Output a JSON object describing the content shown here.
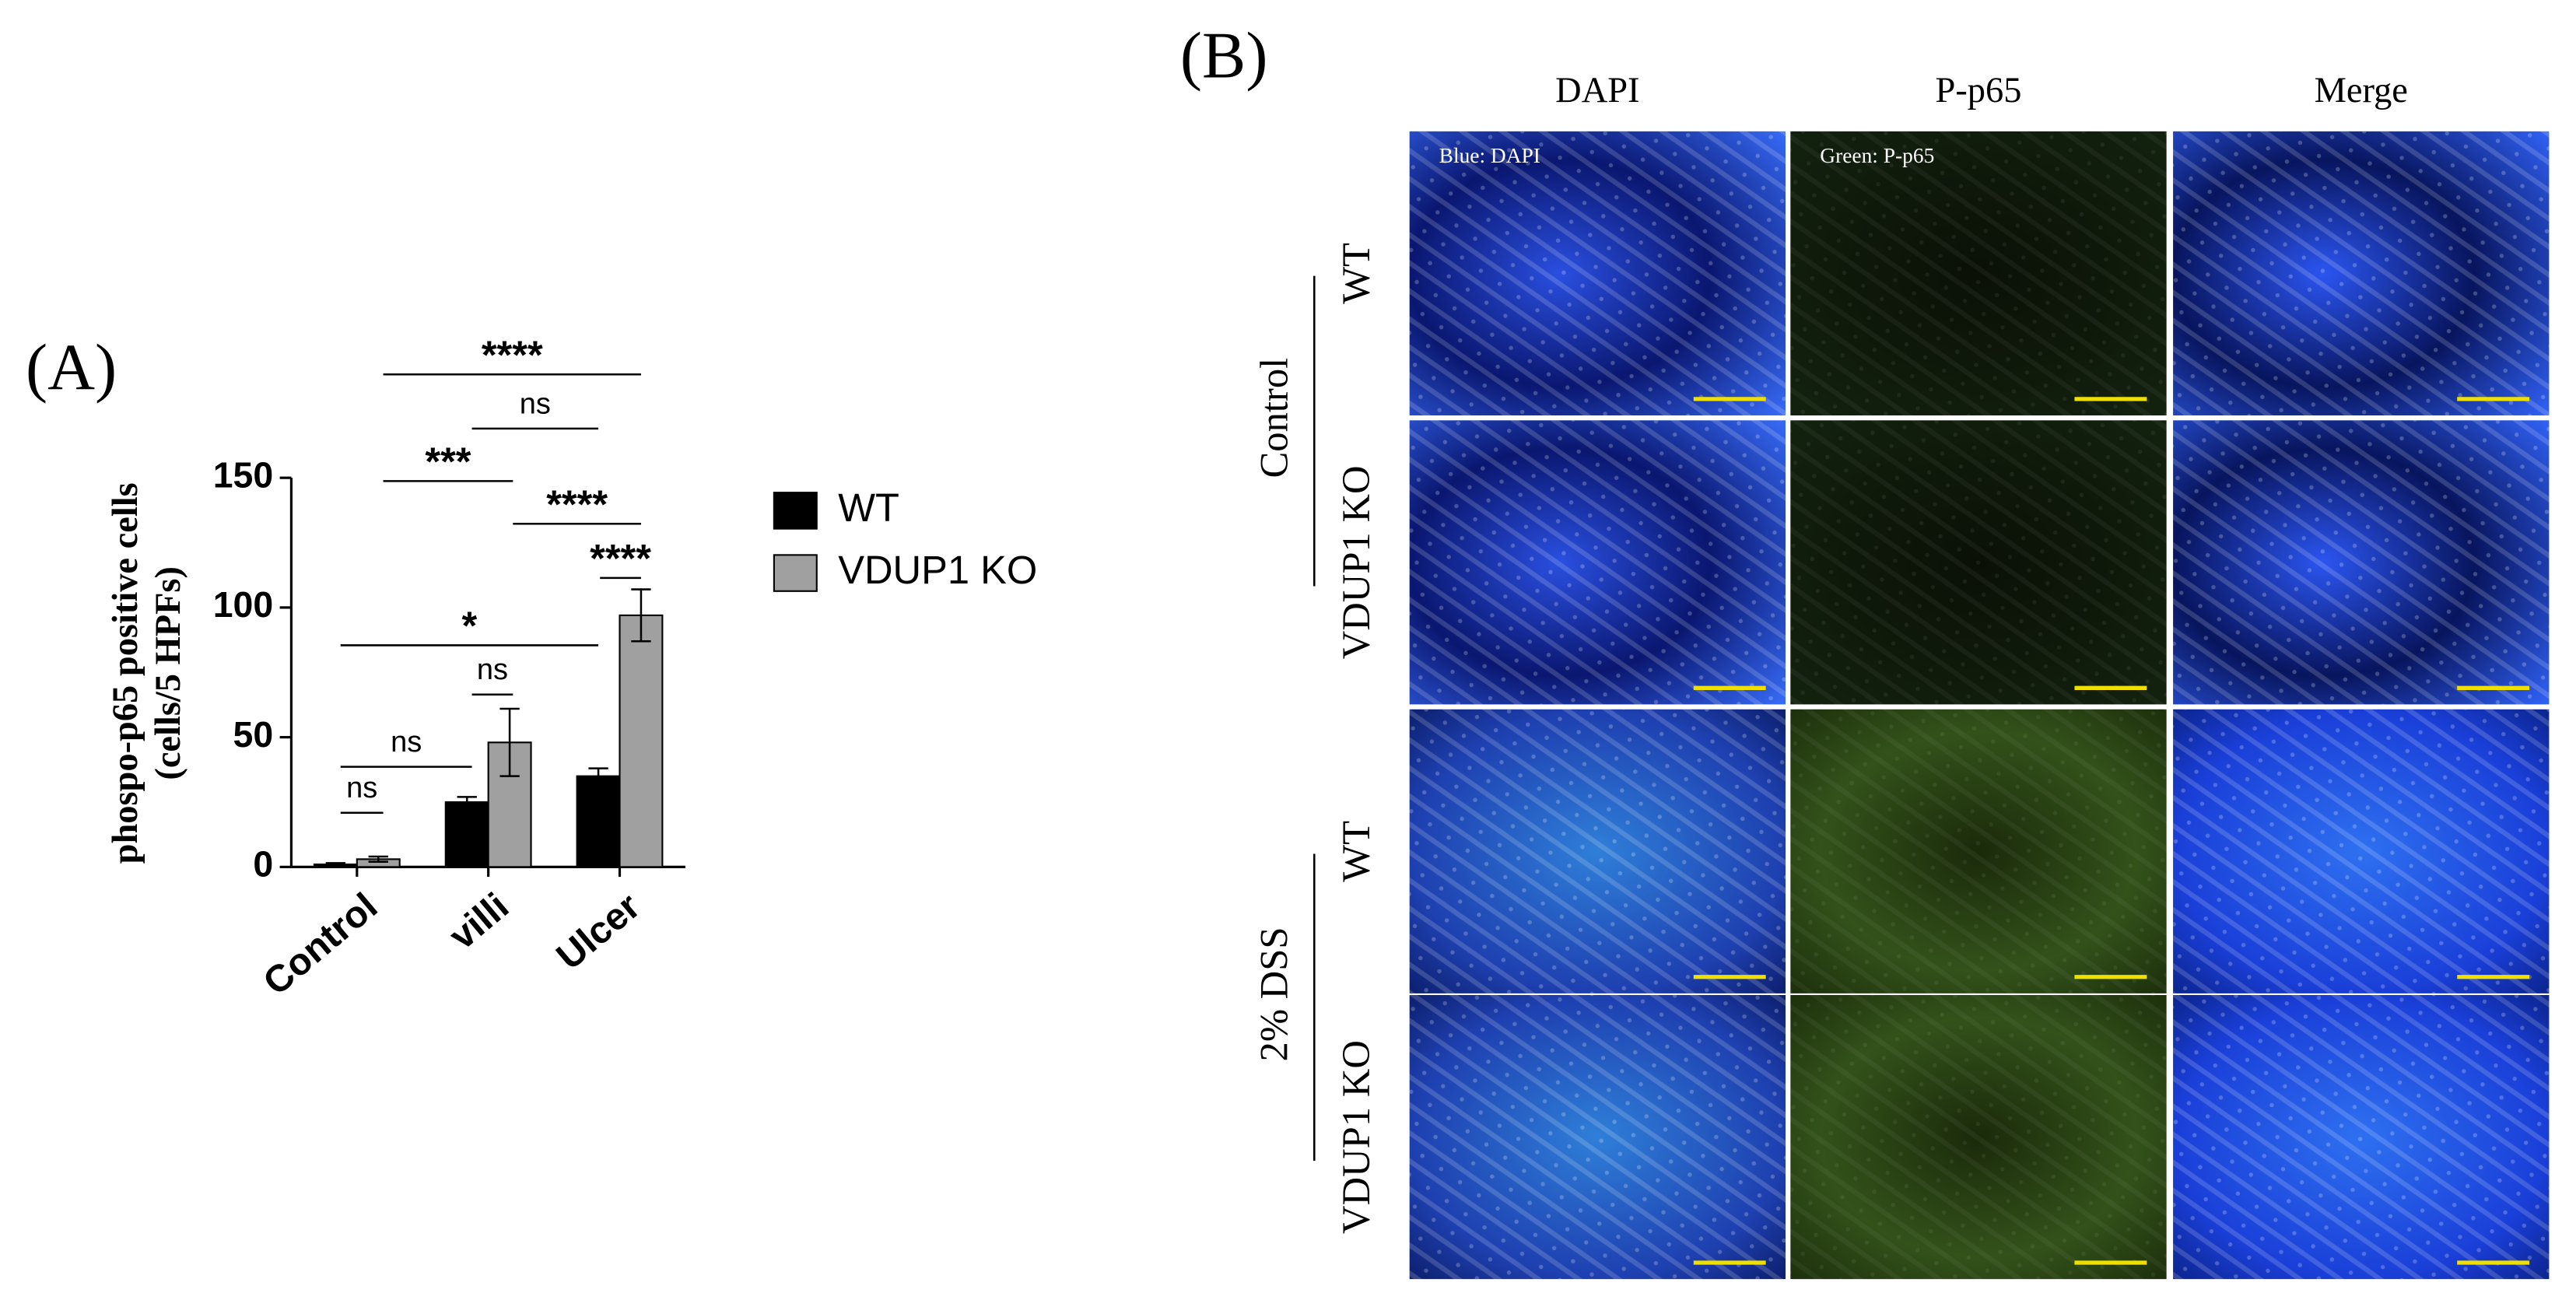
{
  "chart_data": {
    "type": "bar",
    "panel_label": "(A)",
    "ylabel": [
      "phospo-p65 positive cells",
      "(cells/5 HPFs)"
    ],
    "categories": [
      "Control",
      "villi",
      "Ulcer"
    ],
    "series": [
      {
        "name": "WT",
        "color": "#000000",
        "values": [
          1,
          25,
          35
        ],
        "errors": [
          0.5,
          2,
          3
        ]
      },
      {
        "name": "VDUP1 KO",
        "color": "#a0a0a0",
        "values": [
          3,
          48,
          97
        ],
        "errors": [
          1,
          13,
          10
        ]
      }
    ],
    "ylim": [
      0,
      150
    ],
    "yticks": [
      0,
      50,
      100,
      150
    ],
    "annotations": [
      "****",
      "ns",
      "***",
      "****",
      "****",
      "*",
      "ns",
      "ns",
      "ns"
    ]
  },
  "panel_b": {
    "label": "(B)",
    "columns": [
      "DAPI",
      "P-p65",
      "Merge"
    ],
    "groups": [
      {
        "label": "Control",
        "rows": [
          "WT",
          "VDUP1 KO"
        ]
      },
      {
        "label": "2% DSS",
        "rows": [
          "WT",
          "VDUP1 KO"
        ]
      }
    ],
    "channel_notes": [
      "Blue: DAPI",
      "Green: P-p65"
    ]
  }
}
